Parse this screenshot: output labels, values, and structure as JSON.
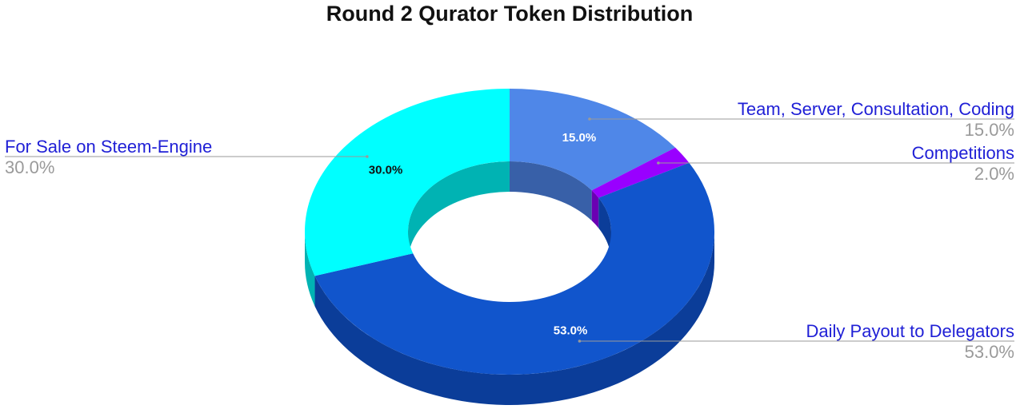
{
  "chart_data": {
    "type": "pie",
    "donut": true,
    "style_3d": true,
    "title": "Round 2 Qurator Token Distribution",
    "slices": [
      {
        "label": "Team, Server, Consultation, Coding",
        "value": 15.0,
        "pct_text": "15.0%",
        "color": "#4f87e8",
        "side_color": "#3860a8",
        "label_text_color": "#ffffff"
      },
      {
        "label": "Competitions",
        "value": 2.0,
        "pct_text": "2.0%",
        "color": "#9900ff",
        "side_color": "#6a00b3",
        "label_text_color": "#ffffff"
      },
      {
        "label": "Daily Payout to Delegators",
        "value": 53.0,
        "pct_text": "53.0%",
        "color": "#1155cc",
        "side_color": "#0b3d99",
        "label_text_color": "#ffffff"
      },
      {
        "label": "For Sale on Steem-Engine",
        "value": 30.0,
        "pct_text": "30.0%",
        "color": "#00ffff",
        "side_color": "#00b3b3",
        "label_text_color": "#111111"
      }
    ],
    "legend": "outside labels with leader lines"
  }
}
